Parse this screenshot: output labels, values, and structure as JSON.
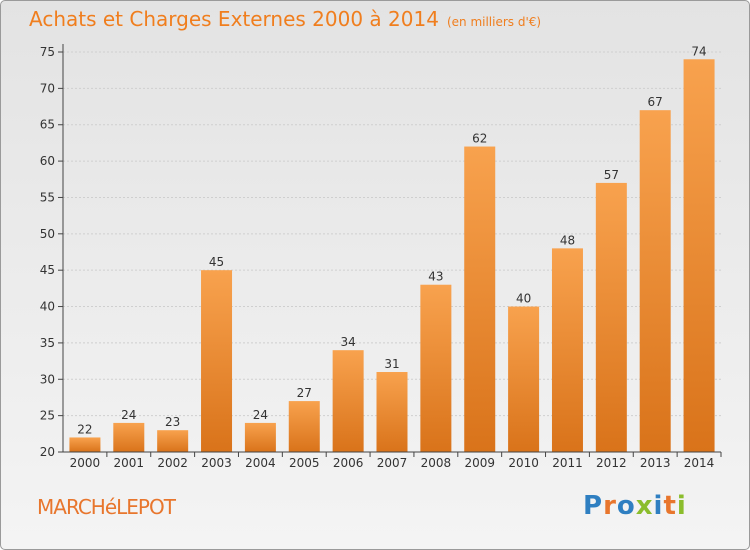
{
  "header": {
    "title": "Achats et Charges Externes 2000 à 2014",
    "unit": "(en milliers d'€)"
  },
  "footer": {
    "commune": "MARCHéLEPOT",
    "brand": "Proxiti"
  },
  "colors": {
    "title": "#f07e1e",
    "bar_light": "#f8a24e",
    "bar_dark": "#d9731a",
    "axis": "#444444",
    "grid": "#cfcfcf"
  },
  "chart_data": {
    "type": "bar",
    "categories": [
      "2000",
      "2001",
      "2002",
      "2003",
      "2004",
      "2005",
      "2006",
      "2007",
      "2008",
      "2009",
      "2010",
      "2011",
      "2012",
      "2013",
      "2014"
    ],
    "values": [
      22,
      24,
      23,
      45,
      24,
      27,
      34,
      31,
      43,
      62,
      40,
      48,
      57,
      67,
      74
    ],
    "title": "Achats et Charges Externes 2000 à 2014",
    "xlabel": "",
    "ylabel": "",
    "ylim": [
      20,
      75
    ],
    "yticks": [
      20,
      25,
      30,
      35,
      40,
      45,
      50,
      55,
      60,
      65,
      70,
      75
    ],
    "grid": true
  }
}
